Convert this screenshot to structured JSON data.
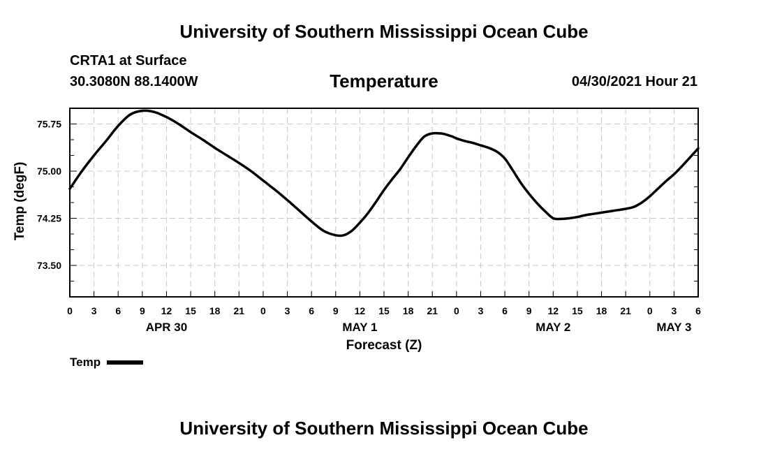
{
  "header": {
    "title_top": "University of Southern Mississippi Ocean Cube",
    "station": "CRTA1 at Surface",
    "coords": "30.3080N  88.1400W",
    "variable": "Temperature",
    "datetime": "04/30/2021 Hour 21"
  },
  "footer": {
    "title_bottom": "University of Southern Mississippi Ocean Cube"
  },
  "chart_data": {
    "type": "line",
    "title": "Temperature",
    "xlabel": "Forecast (Z)",
    "ylabel": "Temp (degF)",
    "grid": true,
    "xlim": [
      0,
      78
    ],
    "ylim": [
      73.0,
      76.0
    ],
    "y_ticks": [
      73.5,
      74.25,
      75.0,
      75.75
    ],
    "y_tick_labels": [
      "73.50",
      "74.25",
      "75.00",
      "75.75"
    ],
    "x_ticks": [
      0,
      3,
      6,
      9,
      12,
      15,
      18,
      21,
      24,
      27,
      30,
      33,
      36,
      39,
      42,
      45,
      48,
      51,
      54,
      57,
      60,
      63,
      66,
      69,
      72,
      75,
      78
    ],
    "x_tick_labels": [
      "0",
      "3",
      "6",
      "9",
      "12",
      "15",
      "18",
      "21",
      "0",
      "3",
      "6",
      "9",
      "12",
      "15",
      "18",
      "21",
      "0",
      "3",
      "6",
      "9",
      "12",
      "15",
      "18",
      "21",
      "0",
      "3",
      "6"
    ],
    "day_labels": [
      {
        "label": "APR 30",
        "hour": 12
      },
      {
        "label": "MAY 1",
        "hour": 36
      },
      {
        "label": "MAY 2",
        "hour": 60
      },
      {
        "label": "MAY 3",
        "hour": 75
      }
    ],
    "series": [
      {
        "name": "Temp",
        "x": [
          0,
          1.5,
          3,
          4.5,
          6,
          7.5,
          9,
          10.5,
          12,
          13.5,
          15,
          16.5,
          18,
          19.5,
          21,
          22.5,
          24,
          25.5,
          27,
          28.5,
          30,
          31.5,
          33,
          34,
          35,
          36,
          37,
          38,
          39,
          40,
          41,
          42,
          43,
          44,
          45,
          46,
          46.5,
          47,
          47.5,
          48,
          49,
          50,
          51,
          52,
          53,
          54,
          55,
          56,
          57,
          58,
          59,
          60,
          61,
          62,
          63,
          64,
          65,
          66,
          67,
          68,
          69,
          70,
          71,
          72,
          73,
          74,
          75,
          76,
          77,
          78
        ],
        "values": [
          74.72,
          75.0,
          75.25,
          75.48,
          75.72,
          75.9,
          75.96,
          75.94,
          75.86,
          75.75,
          75.62,
          75.5,
          75.37,
          75.25,
          75.13,
          75.0,
          74.85,
          74.7,
          74.54,
          74.37,
          74.2,
          74.05,
          73.98,
          73.98,
          74.05,
          74.18,
          74.33,
          74.51,
          74.7,
          74.87,
          75.03,
          75.22,
          75.4,
          75.55,
          75.6,
          75.6,
          75.59,
          75.57,
          75.55,
          75.52,
          75.48,
          75.45,
          75.41,
          75.37,
          75.31,
          75.2,
          75.01,
          74.81,
          74.64,
          74.49,
          74.36,
          74.25,
          74.24,
          74.25,
          74.27,
          74.3,
          74.32,
          74.34,
          74.36,
          74.38,
          74.4,
          74.43,
          74.5,
          74.6,
          74.72,
          74.84,
          74.95,
          75.08,
          75.22,
          75.36
        ]
      }
    ],
    "legend": {
      "label": "Temp",
      "placement": "bottom-left"
    }
  }
}
